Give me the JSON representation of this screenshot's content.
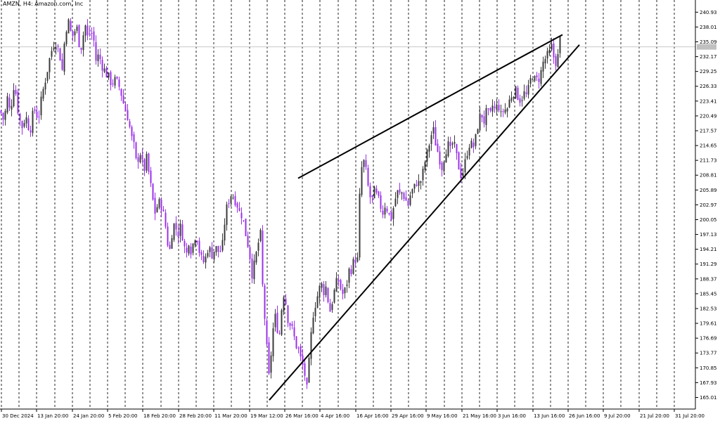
{
  "header": {
    "title": "AMZN, H4:  Amazon.com, Inc"
  },
  "colors": {
    "background": "#ffffff",
    "bull": "#3a3a3a",
    "bear": "#9b30e8",
    "grid": "#000000",
    "trendline": "#000000",
    "price_line": "#c8c8c8",
    "price_label_bg": "#c0c0c0"
  },
  "chart_data": {
    "type": "candlestick",
    "symbol": "AMZN",
    "timeframe": "H4",
    "ylim": [
      163.0,
      242.5
    ],
    "y_ticks": [
      "240.93",
      "238.01",
      "235.09",
      "232.17",
      "229.25",
      "226.33",
      "223.41",
      "220.49",
      "217.57",
      "214.65",
      "211.73",
      "208.81",
      "205.89",
      "202.97",
      "200.05",
      "197.13",
      "194.21",
      "191.29",
      "188.37",
      "185.45",
      "182.53",
      "179.61",
      "176.69",
      "173.77",
      "170.85",
      "167.93",
      "165.01"
    ],
    "x_ticks": [
      "30 Dec 2024",
      "13 Jan 20:00",
      "24 Jan 20:00",
      "5 Feb 20:00",
      "18 Feb 20:00",
      "28 Feb 20:00",
      "11 Mar 20:00",
      "19 Mar 12:00",
      "26 Mar 16:00",
      "4 Apr 16:00",
      "16 Apr 16:00",
      "29 Apr 16:00",
      "9 May 16:00",
      "21 May 16:00",
      "3 Jun 16:00",
      "13 Jun 16:00",
      "26 Jun 16:00",
      "9 Jul 20:00",
      "21 Jul 20:00",
      "31 Jul 20:00"
    ],
    "current_price": 234.1,
    "close_path": [
      [
        0,
        221.5
      ],
      [
        5,
        219.5
      ],
      [
        10,
        224.0
      ],
      [
        14,
        221.0
      ],
      [
        20,
        227.5
      ],
      [
        24,
        222.5
      ],
      [
        30,
        218.0
      ],
      [
        36,
        220.5
      ],
      [
        42,
        217.5
      ],
      [
        48,
        222.0
      ],
      [
        54,
        220.0
      ],
      [
        60,
        225.0
      ],
      [
        66,
        229.0
      ],
      [
        72,
        233.0
      ],
      [
        78,
        235.5
      ],
      [
        84,
        233.0
      ],
      [
        88,
        229.5
      ],
      [
        92,
        236.5
      ],
      [
        96,
        239.5
      ],
      [
        100,
        237.0
      ],
      [
        104,
        236.0
      ],
      [
        108,
        238.5
      ],
      [
        112,
        235.0
      ],
      [
        116,
        234.0
      ],
      [
        120,
        239.0
      ],
      [
        124,
        236.0
      ],
      [
        128,
        237.0
      ],
      [
        132,
        236.5
      ],
      [
        136,
        231.5
      ],
      [
        140,
        232.5
      ],
      [
        146,
        230.0
      ],
      [
        152,
        228.5
      ],
      [
        158,
        227.0
      ],
      [
        164,
        227.5
      ],
      [
        170,
        226.0
      ],
      [
        176,
        222.5
      ],
      [
        182,
        220.0
      ],
      [
        186,
        216.5
      ],
      [
        190,
        214.5
      ],
      [
        194,
        210.5
      ],
      [
        198,
        214.0
      ],
      [
        204,
        209.5
      ],
      [
        208,
        212.0
      ],
      [
        212,
        208.5
      ],
      [
        216,
        204.5
      ],
      [
        220,
        201.5
      ],
      [
        224,
        203.0
      ],
      [
        228,
        203.5
      ],
      [
        232,
        201.0
      ],
      [
        236,
        198.0
      ],
      [
        240,
        193.0
      ],
      [
        244,
        197.5
      ],
      [
        248,
        199.5
      ],
      [
        252,
        197.0
      ],
      [
        256,
        198.5
      ],
      [
        260,
        196.5
      ],
      [
        264,
        192.5
      ],
      [
        268,
        196.0
      ],
      [
        272,
        193.5
      ],
      [
        276,
        197.0
      ],
      [
        280,
        196.5
      ],
      [
        284,
        193.0
      ],
      [
        288,
        191.5
      ],
      [
        292,
        192.5
      ],
      [
        296,
        195.0
      ],
      [
        300,
        193.0
      ],
      [
        306,
        194.5
      ],
      [
        312,
        193.5
      ],
      [
        316,
        195.0
      ],
      [
        320,
        201.0
      ],
      [
        324,
        203.5
      ],
      [
        328,
        205.0
      ],
      [
        332,
        204.5
      ],
      [
        336,
        203.5
      ],
      [
        340,
        201.5
      ],
      [
        344,
        201.0
      ],
      [
        350,
        196.5
      ],
      [
        354,
        194.0
      ],
      [
        358,
        189.5
      ],
      [
        362,
        191.5
      ],
      [
        366,
        195.0
      ],
      [
        370,
        197.0
      ],
      [
        374,
        183.5
      ],
      [
        378,
        178.0
      ],
      [
        381,
        167.5
      ],
      [
        384,
        172.0
      ],
      [
        388,
        178.5
      ],
      [
        392,
        181.5
      ],
      [
        396,
        176.0
      ],
      [
        400,
        182.5
      ],
      [
        404,
        186.5
      ],
      [
        408,
        181.0
      ],
      [
        412,
        179.5
      ],
      [
        416,
        178.0
      ],
      [
        420,
        175.5
      ],
      [
        424,
        174.5
      ],
      [
        428,
        172.0
      ],
      [
        432,
        170.5
      ],
      [
        436,
        166.5
      ],
      [
        440,
        173.5
      ],
      [
        444,
        181.0
      ],
      [
        448,
        183.5
      ],
      [
        452,
        185.5
      ],
      [
        456,
        187.5
      ],
      [
        460,
        186.0
      ],
      [
        464,
        187.0
      ],
      [
        468,
        181.5
      ],
      [
        472,
        184.0
      ],
      [
        476,
        186.5
      ],
      [
        480,
        188.5
      ],
      [
        484,
        186.5
      ],
      [
        488,
        185.0
      ],
      [
        492,
        187.0
      ],
      [
        496,
        190.0
      ],
      [
        500,
        190.5
      ],
      [
        504,
        192.5
      ],
      [
        508,
        192.0
      ],
      [
        512,
        208.5
      ],
      [
        516,
        212.0
      ],
      [
        520,
        209.5
      ],
      [
        524,
        205.5
      ],
      [
        528,
        203.5
      ],
      [
        532,
        205.5
      ],
      [
        536,
        204.5
      ],
      [
        540,
        203.0
      ],
      [
        544,
        201.5
      ],
      [
        548,
        203.5
      ],
      [
        552,
        201.0
      ],
      [
        556,
        200.5
      ],
      [
        560,
        203.0
      ],
      [
        564,
        205.5
      ],
      [
        568,
        205.0
      ],
      [
        572,
        205.5
      ],
      [
        576,
        204.0
      ],
      [
        580,
        203.0
      ],
      [
        584,
        205.5
      ],
      [
        588,
        206.0
      ],
      [
        592,
        207.5
      ],
      [
        596,
        207.0
      ],
      [
        600,
        208.5
      ],
      [
        604,
        211.5
      ],
      [
        608,
        213.5
      ],
      [
        612,
        216.5
      ],
      [
        616,
        217.5
      ],
      [
        620,
        214.5
      ],
      [
        624,
        212.5
      ],
      [
        628,
        210.5
      ],
      [
        632,
        213.0
      ],
      [
        636,
        215.0
      ],
      [
        640,
        213.5
      ],
      [
        644,
        215.5
      ],
      [
        648,
        213.0
      ],
      [
        652,
        210.5
      ],
      [
        656,
        208.5
      ],
      [
        660,
        210.5
      ],
      [
        664,
        213.5
      ],
      [
        668,
        215.5
      ],
      [
        672,
        214.0
      ],
      [
        676,
        216.0
      ],
      [
        680,
        219.5
      ],
      [
        684,
        221.0
      ],
      [
        688,
        219.5
      ],
      [
        692,
        221.5
      ],
      [
        696,
        220.0
      ],
      [
        700,
        222.5
      ],
      [
        704,
        221.5
      ],
      [
        708,
        223.0
      ],
      [
        712,
        220.5
      ],
      [
        716,
        222.0
      ],
      [
        720,
        221.5
      ],
      [
        724,
        223.5
      ],
      [
        728,
        225.0
      ],
      [
        732,
        225.5
      ],
      [
        736,
        224.5
      ],
      [
        740,
        223.5
      ],
      [
        744,
        225.0
      ],
      [
        748,
        224.5
      ],
      [
        752,
        226.0
      ],
      [
        756,
        229.0
      ],
      [
        760,
        227.5
      ],
      [
        764,
        227.5
      ],
      [
        768,
        228.5
      ],
      [
        772,
        231.0
      ],
      [
        776,
        232.0
      ],
      [
        780,
        232.5
      ],
      [
        784,
        234.0
      ],
      [
        788,
        231.5
      ],
      [
        792,
        231.0
      ],
      [
        796,
        235.5
      ],
      [
        798,
        234.5
      ]
    ],
    "trendlines": [
      {
        "from": [
          424,
          208.2
        ],
        "to": [
          800,
          236.5
        ]
      },
      {
        "from": [
          383,
          164.5
        ],
        "to": [
          824,
          234.5
        ]
      }
    ]
  }
}
